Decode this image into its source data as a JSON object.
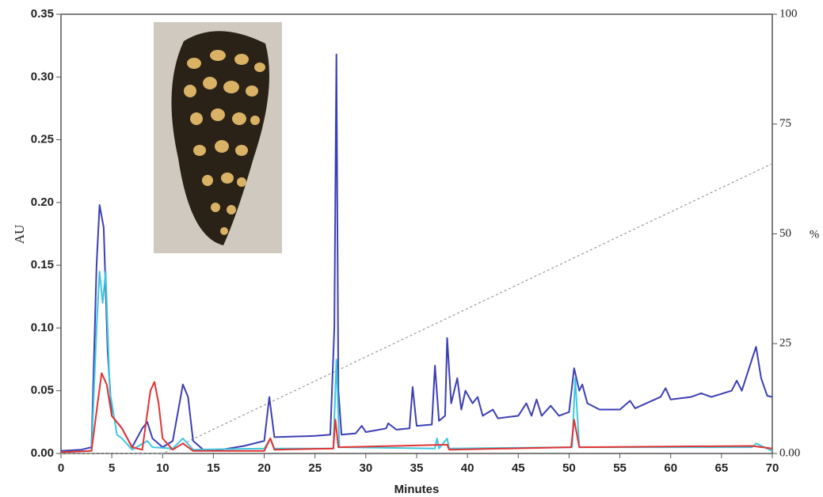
{
  "chart_data": {
    "type": "line",
    "xlabel": "Minutes",
    "ylabel": "AU",
    "y2label": "%",
    "xlim": [
      0,
      70
    ],
    "xticks": [
      0,
      5,
      10,
      15,
      20,
      25,
      30,
      35,
      40,
      45,
      50,
      55,
      60,
      65,
      70
    ],
    "ylim": [
      0,
      0.35
    ],
    "yticks": [
      {
        "value": 0,
        "label": "0.00"
      },
      {
        "value": 0.05,
        "label": "0.05"
      },
      {
        "value": 0.1,
        "label": "0.10"
      },
      {
        "value": 0.15,
        "label": "0.15"
      },
      {
        "value": 0.2,
        "label": "0.20"
      },
      {
        "value": 0.25,
        "label": "0.25"
      },
      {
        "value": 0.3,
        "label": "0.30"
      },
      {
        "value": 0.35,
        "label": "0.35"
      }
    ],
    "y2lim": [
      0,
      100
    ],
    "y2ticks": [
      {
        "value": 0,
        "label": "0.00"
      },
      25,
      50,
      75,
      100
    ],
    "series": [
      {
        "color": "#3c3fb4",
        "x": [
          0,
          2,
          3,
          3.5,
          3.8,
          4.2,
          4.6,
          5,
          6,
          7,
          8,
          8.5,
          9,
          10,
          11,
          12,
          12.5,
          13,
          14,
          15,
          18,
          20,
          20.5,
          21,
          25,
          26.5,
          26.9,
          27.1,
          27.3,
          27.6,
          29,
          29.6,
          30,
          32,
          32.2,
          33,
          34.3,
          34.6,
          35,
          36.5,
          36.8,
          37.2,
          37.8,
          38,
          38.4,
          39,
          39.4,
          39.8,
          40.5,
          41,
          41.5,
          42.5,
          43,
          45,
          45.8,
          46.3,
          46.8,
          47.3,
          48.2,
          49,
          50,
          50.5,
          51,
          51.3,
          51.8,
          53,
          55,
          56,
          56.5,
          59,
          59.5,
          60,
          62,
          63,
          64,
          66,
          66.5,
          67,
          68,
          68.4,
          68.9,
          69.5,
          70
        ],
        "values": [
          0.002,
          0.003,
          0.005,
          0.15,
          0.198,
          0.18,
          0.08,
          0.03,
          0.02,
          0.005,
          0.02,
          0.025,
          0.012,
          0.005,
          0.01,
          0.055,
          0.045,
          0.01,
          0.003,
          0.002,
          0.006,
          0.01,
          0.045,
          0.013,
          0.014,
          0.015,
          0.1,
          0.318,
          0.05,
          0.015,
          0.016,
          0.022,
          0.017,
          0.02,
          0.024,
          0.019,
          0.02,
          0.053,
          0.022,
          0.023,
          0.07,
          0.026,
          0.03,
          0.092,
          0.04,
          0.06,
          0.035,
          0.05,
          0.04,
          0.045,
          0.03,
          0.035,
          0.028,
          0.03,
          0.04,
          0.03,
          0.043,
          0.03,
          0.038,
          0.03,
          0.033,
          0.068,
          0.05,
          0.055,
          0.04,
          0.035,
          0.035,
          0.042,
          0.036,
          0.045,
          0.052,
          0.043,
          0.045,
          0.048,
          0.045,
          0.05,
          0.058,
          0.05,
          0.075,
          0.085,
          0.06,
          0.046,
          0.045
        ]
      },
      {
        "color": "#3ec6df",
        "x": [
          0,
          3,
          3.5,
          3.8,
          4.1,
          4.4,
          4.8,
          5.5,
          6,
          7,
          8.5,
          9,
          11,
          12,
          13,
          20,
          20.6,
          21,
          26.8,
          27.1,
          27.4,
          36.8,
          37,
          37.2,
          38,
          38.2,
          50.3,
          50.6,
          51,
          68,
          68.4,
          70
        ],
        "values": [
          0.001,
          0.002,
          0.1,
          0.145,
          0.12,
          0.145,
          0.05,
          0.015,
          0.012,
          0.003,
          0.01,
          0.005,
          0.004,
          0.012,
          0.003,
          0.004,
          0.012,
          0.004,
          0.004,
          0.075,
          0.005,
          0.004,
          0.012,
          0.004,
          0.012,
          0.004,
          0.005,
          0.06,
          0.005,
          0.005,
          0.008,
          0.002
        ]
      },
      {
        "color": "#e23232",
        "x": [
          0,
          3,
          3.6,
          4,
          4.5,
          5,
          6,
          7,
          8,
          8.8,
          9.2,
          9.6,
          10,
          11,
          12,
          13,
          20,
          20.6,
          21,
          26.8,
          27,
          27.3,
          38,
          38.2,
          50.2,
          50.5,
          51,
          68,
          70
        ],
        "values": [
          0.001,
          0.002,
          0.04,
          0.064,
          0.055,
          0.03,
          0.02,
          0.005,
          0.003,
          0.05,
          0.057,
          0.04,
          0.012,
          0.003,
          0.008,
          0.002,
          0.002,
          0.012,
          0.003,
          0.004,
          0.027,
          0.005,
          0.007,
          0.003,
          0.005,
          0.027,
          0.005,
          0.006,
          0.004
        ]
      },
      {
        "color": "#9a9a9a",
        "axis": "y2",
        "dashed": true,
        "x": [
          0,
          10,
          70
        ],
        "values": [
          0,
          0,
          66
        ]
      }
    ]
  }
}
